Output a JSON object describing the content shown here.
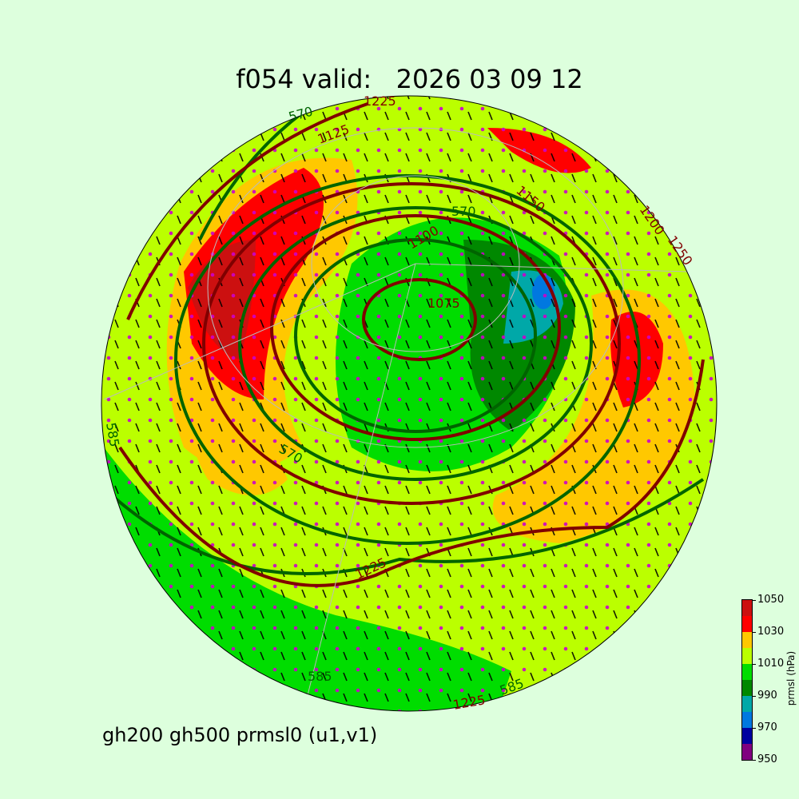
{
  "title": "f054 valid:   2026 03 09 12",
  "subtitle": "gh200 gh500 prmsl0 (u1,v1)",
  "colorbar": {
    "label": "prmsl (hPa)",
    "ticks": [
      "1050",
      "1030",
      "1010",
      "990",
      "970",
      "950"
    ],
    "levels": [
      950,
      960,
      970,
      980,
      990,
      1000,
      1010,
      1020,
      1030,
      1040,
      1050
    ],
    "colors": [
      "#800080",
      "#0000a0",
      "#0078e0",
      "#00a8a8",
      "#008800",
      "#00dd00",
      "#bbff00",
      "#ffc800",
      "#ff0000",
      "#cc1010"
    ]
  },
  "contour_labels": {
    "gh500": [
      "570",
      "570",
      "585",
      "585",
      "585",
      "570"
    ],
    "gh200": [
      "1125",
      "1100",
      "1075",
      "1200",
      "1250",
      "1225",
      "1225",
      "1225",
      "1150"
    ]
  },
  "colors": {
    "gh500": "#006400",
    "gh200": "#800000",
    "wind_vectors": "#000000",
    "grid_points": "#cc00cc",
    "background": "#ddffdd"
  }
}
